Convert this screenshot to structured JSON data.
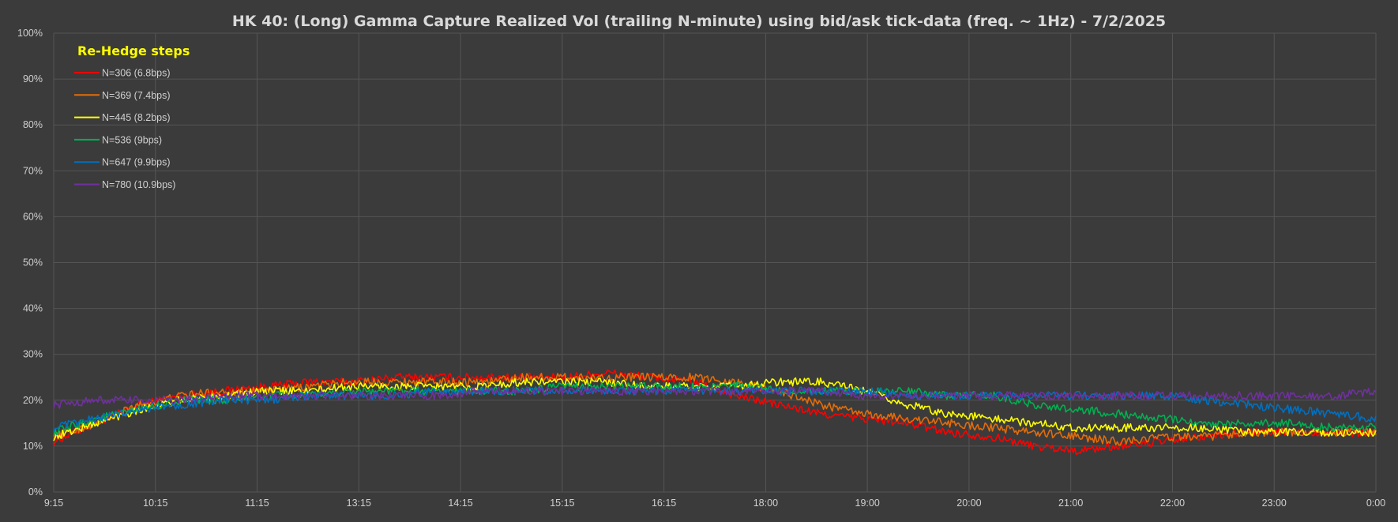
{
  "chart_data": {
    "type": "line",
    "title": "HK 40: (Long) Gamma Capture Realized Vol (trailing N-minute) using bid/ask tick-data (freq. ~ 1Hz) - 7/2/2025",
    "xlabel": "",
    "ylabel": "",
    "x_ticks": [
      "9:15",
      "10:15",
      "11:15",
      "13:15",
      "14:15",
      "15:15",
      "16:15",
      "18:00",
      "19:00",
      "20:00",
      "21:00",
      "22:00",
      "23:00",
      "0:00"
    ],
    "y_ticks": [
      "0%",
      "10%",
      "20%",
      "30%",
      "40%",
      "50%",
      "60%",
      "70%",
      "80%",
      "90%",
      "100%"
    ],
    "ylim": [
      0,
      100
    ],
    "grid": true,
    "legend": {
      "title": "Re-Hedge steps",
      "placement": "top-left"
    },
    "series": [
      {
        "name": "N=306 (6.8bps)",
        "color": "#ff0000",
        "values": [
          11,
          15,
          19,
          21,
          22,
          23,
          24,
          24,
          25,
          25,
          25,
          25,
          25,
          26,
          25,
          24,
          21,
          19,
          17,
          16,
          15,
          13,
          12,
          10,
          9,
          10,
          11,
          12,
          13,
          13,
          13,
          13
        ]
      },
      {
        "name": "N=369 (7.4bps)",
        "color": "#e36c09",
        "values": [
          12,
          15,
          19,
          21,
          22,
          22,
          23,
          24,
          24,
          24,
          24,
          25,
          25,
          25,
          25,
          25,
          24,
          22,
          19,
          17,
          16,
          15,
          14,
          13,
          12,
          11,
          12,
          12,
          13,
          13,
          13,
          13
        ]
      },
      {
        "name": "N=445 (8.2bps)",
        "color": "#ffff00",
        "values": [
          12,
          15,
          18,
          20,
          21,
          22,
          22,
          23,
          23,
          23,
          23,
          24,
          24,
          24,
          23,
          23,
          23,
          24,
          24,
          22,
          19,
          17,
          16,
          15,
          14,
          14,
          14,
          14,
          13,
          13,
          13,
          13
        ]
      },
      {
        "name": "N=536 (9bps)",
        "color": "#00b050",
        "values": [
          13,
          16,
          18,
          20,
          20,
          21,
          21,
          22,
          22,
          22,
          22,
          22,
          23,
          23,
          23,
          23,
          23,
          22,
          22,
          22,
          22,
          21,
          21,
          19,
          18,
          17,
          16,
          15,
          15,
          15,
          14,
          14
        ]
      },
      {
        "name": "N=647 (9.9bps)",
        "color": "#0070c0",
        "values": [
          14,
          16,
          18,
          19,
          20,
          20,
          21,
          21,
          21,
          22,
          22,
          22,
          22,
          22,
          22,
          22,
          22,
          22,
          22,
          22,
          21,
          21,
          21,
          21,
          21,
          21,
          21,
          20,
          19,
          18,
          17,
          16
        ]
      },
      {
        "name": "N=780 (10.9bps)",
        "color": "#7030a0",
        "values": [
          19,
          20,
          20,
          20,
          21,
          21,
          21,
          21,
          21,
          21,
          22,
          22,
          22,
          22,
          22,
          22,
          22,
          22,
          22,
          21,
          21,
          21,
          21,
          21,
          21,
          21,
          21,
          21,
          21,
          21,
          21,
          22
        ]
      }
    ]
  }
}
